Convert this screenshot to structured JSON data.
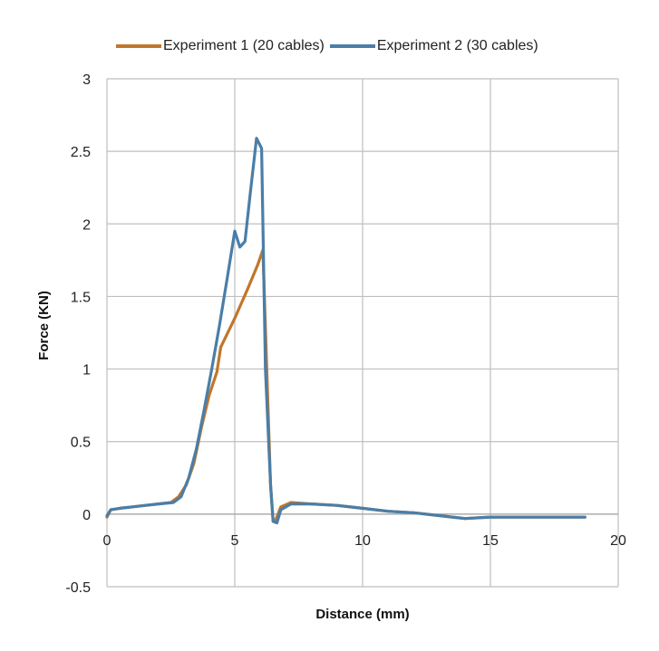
{
  "chart_data": {
    "type": "line",
    "title": "",
    "xlabel": "Distance (mm)",
    "ylabel": "Force (KN)",
    "xlim": [
      0,
      20
    ],
    "ylim": [
      -0.5,
      3
    ],
    "x_ticks": [
      "0",
      "5",
      "10",
      "15",
      "20"
    ],
    "y_ticks": [
      "-0.5",
      "0",
      "0.5",
      "1",
      "1.5",
      "2",
      "2.5",
      "3"
    ],
    "grid": true,
    "legend_position": "top",
    "series": [
      {
        "name": "Experiment 1 (20 cables)",
        "color": "#c0762b",
        "points": [
          [
            0,
            -0.02
          ],
          [
            0.15,
            0.03
          ],
          [
            0.5,
            0.04
          ],
          [
            1,
            0.05
          ],
          [
            1.5,
            0.06
          ],
          [
            2,
            0.07
          ],
          [
            2.5,
            0.08
          ],
          [
            2.8,
            0.12
          ],
          [
            3.1,
            0.2
          ],
          [
            3.4,
            0.35
          ],
          [
            3.7,
            0.6
          ],
          [
            4.0,
            0.82
          ],
          [
            4.3,
            0.98
          ],
          [
            4.45,
            1.15
          ],
          [
            5.0,
            1.35
          ],
          [
            5.5,
            1.55
          ],
          [
            5.9,
            1.72
          ],
          [
            6.1,
            1.82
          ],
          [
            6.25,
            1.0
          ],
          [
            6.4,
            0.2
          ],
          [
            6.5,
            -0.05
          ],
          [
            6.6,
            -0.04
          ],
          [
            6.8,
            0.05
          ],
          [
            7.2,
            0.08
          ],
          [
            8,
            0.07
          ],
          [
            9,
            0.06
          ],
          [
            10,
            0.04
          ],
          [
            11,
            0.02
          ],
          [
            12,
            0.01
          ],
          [
            13,
            -0.01
          ],
          [
            14,
            -0.03
          ],
          [
            15,
            -0.02
          ],
          [
            16,
            -0.02
          ],
          [
            17,
            -0.02
          ],
          [
            18,
            -0.02
          ],
          [
            18.7,
            -0.02
          ]
        ]
      },
      {
        "name": "Experiment 2 (30 cables)",
        "color": "#4a7ea8",
        "points": [
          [
            0,
            -0.01
          ],
          [
            0.15,
            0.03
          ],
          [
            0.5,
            0.04
          ],
          [
            1,
            0.05
          ],
          [
            1.5,
            0.06
          ],
          [
            2,
            0.07
          ],
          [
            2.6,
            0.08
          ],
          [
            2.9,
            0.12
          ],
          [
            3.2,
            0.25
          ],
          [
            3.5,
            0.45
          ],
          [
            3.8,
            0.72
          ],
          [
            4.1,
            1.0
          ],
          [
            4.4,
            1.3
          ],
          [
            4.7,
            1.62
          ],
          [
            5.0,
            1.95
          ],
          [
            5.2,
            1.84
          ],
          [
            5.4,
            1.88
          ],
          [
            5.6,
            2.2
          ],
          [
            5.85,
            2.59
          ],
          [
            6.05,
            2.52
          ],
          [
            6.2,
            1.0
          ],
          [
            6.4,
            0.2
          ],
          [
            6.5,
            -0.05
          ],
          [
            6.65,
            -0.06
          ],
          [
            6.8,
            0.03
          ],
          [
            7.2,
            0.07
          ],
          [
            8,
            0.07
          ],
          [
            9,
            0.06
          ],
          [
            10,
            0.04
          ],
          [
            11,
            0.02
          ],
          [
            12,
            0.01
          ],
          [
            13,
            -0.01
          ],
          [
            14,
            -0.03
          ],
          [
            15,
            -0.02
          ],
          [
            16,
            -0.02
          ],
          [
            17,
            -0.02
          ],
          [
            18,
            -0.02
          ],
          [
            18.7,
            -0.02
          ]
        ]
      }
    ]
  }
}
